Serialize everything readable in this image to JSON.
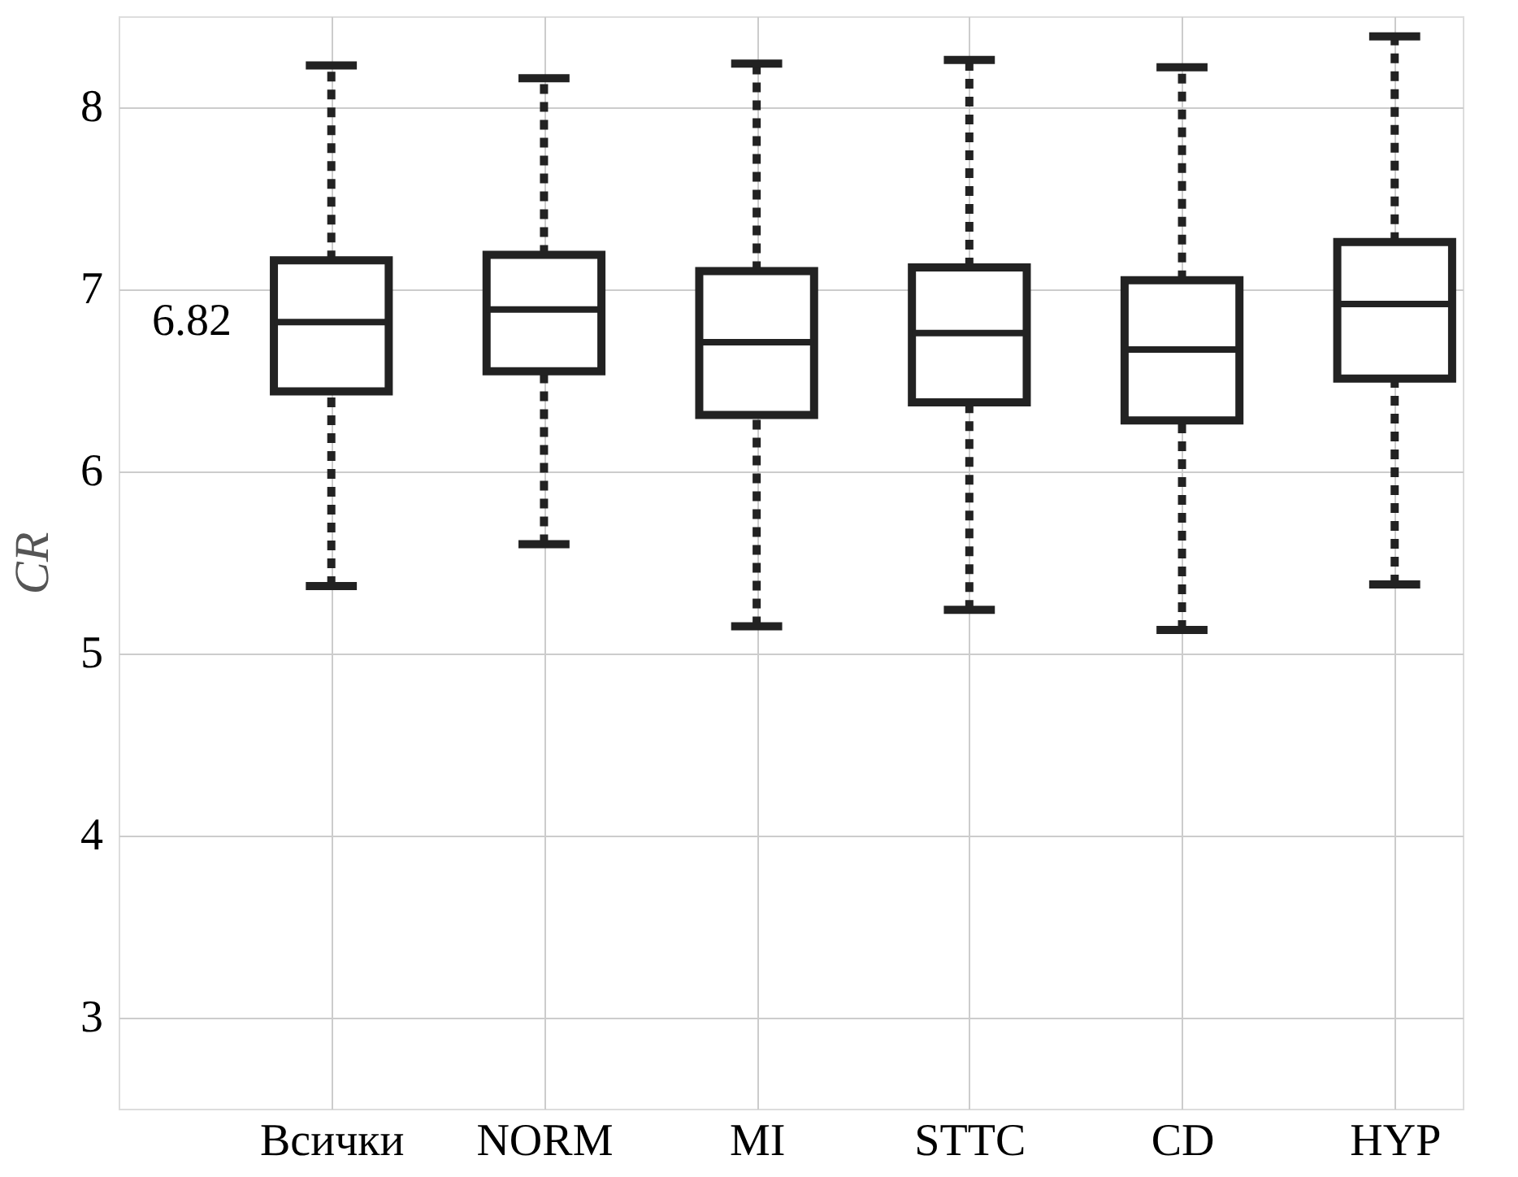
{
  "chart_data": {
    "type": "box",
    "ylabel": "CR",
    "categories": [
      "Всички",
      "NORM",
      "MI",
      "STTC",
      "CD",
      "HYP"
    ],
    "boxes": [
      {
        "low": 5.37,
        "q1": 6.44,
        "median": 6.82,
        "q3": 7.16,
        "high": 8.23
      },
      {
        "low": 5.6,
        "q1": 6.55,
        "median": 6.89,
        "q3": 7.19,
        "high": 8.16
      },
      {
        "low": 5.15,
        "q1": 6.31,
        "median": 6.71,
        "q3": 7.1,
        "high": 8.24
      },
      {
        "low": 5.24,
        "q1": 6.38,
        "median": 6.76,
        "q3": 7.12,
        "high": 8.26
      },
      {
        "low": 5.13,
        "q1": 6.28,
        "median": 6.67,
        "q3": 7.05,
        "high": 8.22
      },
      {
        "low": 5.38,
        "q1": 6.51,
        "median": 6.92,
        "q3": 7.26,
        "high": 8.39
      }
    ],
    "color": "#222222",
    "ylim": [
      2.5,
      8.5
    ],
    "yticks": [
      3,
      4,
      5,
      6,
      7,
      8
    ],
    "grid": true,
    "annotations": [
      "6.82"
    ]
  }
}
